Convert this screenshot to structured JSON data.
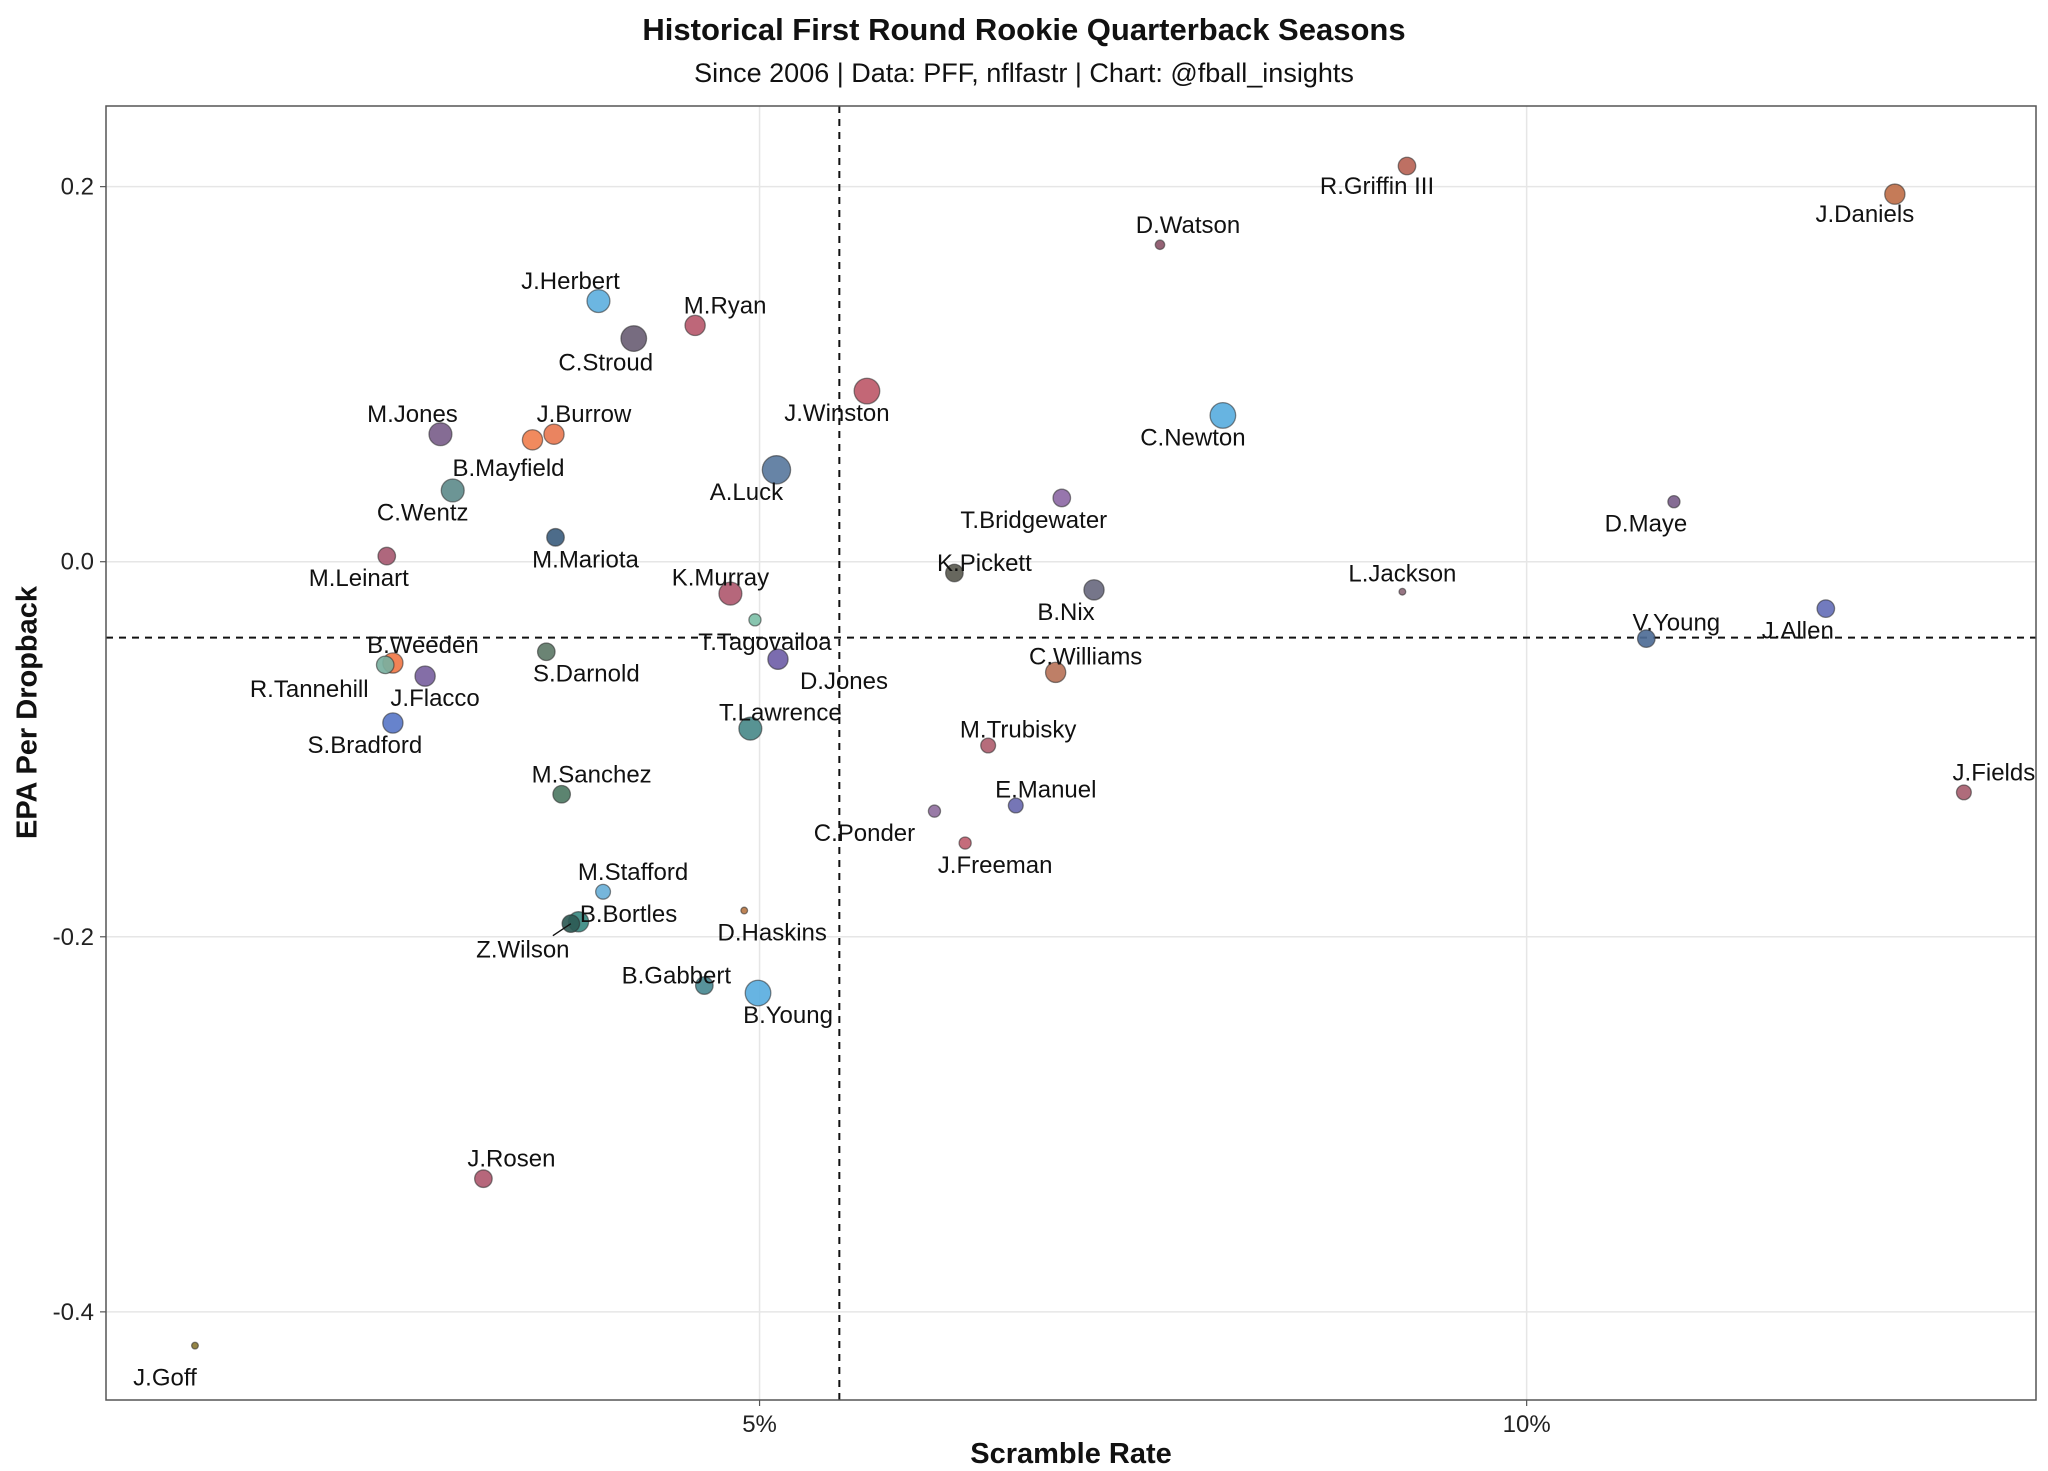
{
  "chart_data": {
    "type": "scatter",
    "title": "Historical First Round Rookie Quarterback Seasons",
    "subtitle": "Since 2006 | Data: PFF, nflfastr | Chart: @fball_insights",
    "xlabel": "Scramble Rate",
    "ylabel": "EPA Per Dropback",
    "xlim": [
      0.0074,
      0.1332
    ],
    "ylim": [
      -0.447,
      0.243
    ],
    "x_ticks": [
      {
        "value": 0.05,
        "label": "5%"
      },
      {
        "value": 0.1,
        "label": "10%"
      }
    ],
    "y_ticks": [
      {
        "value": 0.2,
        "label": "0.2"
      },
      {
        "value": 0.0,
        "label": "0.0"
      },
      {
        "value": -0.2,
        "label": "-0.2"
      },
      {
        "value": -0.4,
        "label": "-0.4"
      }
    ],
    "reference_lines": {
      "x": 0.0552,
      "y": -0.0405
    },
    "grid": true,
    "points": [
      {
        "name": "J.Goff",
        "x": 0.0132,
        "y": -0.418,
        "size": 1,
        "color": "#8b7a35"
      },
      {
        "name": "R.Griffin III",
        "x": 0.0922,
        "y": 0.211,
        "size": 5,
        "color": "#b86456"
      },
      {
        "name": "J.Daniels",
        "x": 0.124,
        "y": 0.196,
        "size": 6,
        "color": "#c0704a"
      },
      {
        "name": "D.Watson",
        "x": 0.0761,
        "y": 0.169,
        "size": 2,
        "color": "#8b5569"
      },
      {
        "name": "J.Herbert",
        "x": 0.0395,
        "y": 0.139,
        "size": 7,
        "color": "#5fb0de"
      },
      {
        "name": "C.Stroud",
        "x": 0.0418,
        "y": 0.119,
        "size": 8,
        "color": "#6b6075"
      },
      {
        "name": "M.Ryan",
        "x": 0.0458,
        "y": 0.126,
        "size": 6,
        "color": "#b85a6e"
      },
      {
        "name": "J.Winston",
        "x": 0.057,
        "y": 0.091,
        "size": 8,
        "color": "#be5a6a"
      },
      {
        "name": "C.Newton",
        "x": 0.0802,
        "y": 0.078,
        "size": 8,
        "color": "#5aaede"
      },
      {
        "name": "M.Jones",
        "x": 0.0292,
        "y": 0.068,
        "size": 7,
        "color": "#7b5f8b"
      },
      {
        "name": "J.Burrow",
        "x": 0.0366,
        "y": 0.068,
        "size": 6,
        "color": "#e87a52"
      },
      {
        "name": "B.Mayfield",
        "x": 0.0352,
        "y": 0.065,
        "size": 6,
        "color": "#f08050"
      },
      {
        "name": "A.Luck",
        "x": 0.0511,
        "y": 0.049,
        "size": 9,
        "color": "#5a7a9e"
      },
      {
        "name": "C.Wentz",
        "x": 0.03,
        "y": 0.038,
        "size": 7,
        "color": "#5f8c8c"
      },
      {
        "name": "T.Bridgewater",
        "x": 0.0697,
        "y": 0.034,
        "size": 5,
        "color": "#8e6aa6"
      },
      {
        "name": "D.Maye",
        "x": 0.1096,
        "y": 0.032,
        "size": 3,
        "color": "#7b5f8b"
      },
      {
        "name": "M.Mariota",
        "x": 0.0367,
        "y": 0.013,
        "size": 5,
        "color": "#3e6080"
      },
      {
        "name": "M.Leinart",
        "x": 0.0257,
        "y": 0.003,
        "size": 5,
        "color": "#a85a72"
      },
      {
        "name": "K.Pickett",
        "x": 0.0627,
        "y": -0.006,
        "size": 5,
        "color": "#5a5a50"
      },
      {
        "name": "K.Murray",
        "x": 0.0481,
        "y": -0.017,
        "size": 7,
        "color": "#b05a70"
      },
      {
        "name": "B.Nix",
        "x": 0.0718,
        "y": -0.015,
        "size": 6,
        "color": "#6a6a80"
      },
      {
        "name": "L.Jackson",
        "x": 0.0919,
        "y": -0.016,
        "size": 1,
        "color": "#8e6a7a"
      },
      {
        "name": "J.Allen",
        "x": 0.1195,
        "y": -0.025,
        "size": 5,
        "color": "#6670b8"
      },
      {
        "name": "T.Tagovailoa",
        "x": 0.0497,
        "y": -0.031,
        "size": 3,
        "color": "#7ec0a8"
      },
      {
        "name": "V.Young",
        "x": 0.1078,
        "y": -0.041,
        "size": 5,
        "color": "#4e6c96"
      },
      {
        "name": "D.Jones",
        "x": 0.0512,
        "y": -0.052,
        "size": 6,
        "color": "#7060a8"
      },
      {
        "name": "S.Darnold",
        "x": 0.0361,
        "y": -0.048,
        "size": 5,
        "color": "#5e7a68"
      },
      {
        "name": "B.Weeden",
        "x": 0.0261,
        "y": -0.054,
        "size": 6,
        "color": "#f07848"
      },
      {
        "name": "R.Tannehill",
        "x": 0.0256,
        "y": -0.055,
        "size": 5,
        "color": "#7ab0a0"
      },
      {
        "name": "J.Flacco",
        "x": 0.0282,
        "y": -0.061,
        "size": 6,
        "color": "#7a62a0"
      },
      {
        "name": "C.Williams",
        "x": 0.0693,
        "y": -0.059,
        "size": 6,
        "color": "#b8745a"
      },
      {
        "name": "S.Bradford",
        "x": 0.0261,
        "y": -0.086,
        "size": 6,
        "color": "#5a78c8"
      },
      {
        "name": "T.Lawrence",
        "x": 0.0494,
        "y": -0.089,
        "size": 7,
        "color": "#4a8a8a"
      },
      {
        "name": "M.Trubisky",
        "x": 0.0649,
        "y": -0.098,
        "size": 4,
        "color": "#b06070"
      },
      {
        "name": "M.Sanchez",
        "x": 0.0371,
        "y": -0.124,
        "size": 5,
        "color": "#4e7a64"
      },
      {
        "name": "E.Manuel",
        "x": 0.0667,
        "y": -0.13,
        "size": 4,
        "color": "#6a6ab0"
      },
      {
        "name": "J.Fields",
        "x": 0.1285,
        "y": -0.123,
        "size": 4,
        "color": "#a86070"
      },
      {
        "name": "C.Ponder",
        "x": 0.0614,
        "y": -0.133,
        "size": 3,
        "color": "#9070a0"
      },
      {
        "name": "J.Freeman",
        "x": 0.0634,
        "y": -0.15,
        "size": 3,
        "color": "#c06070"
      },
      {
        "name": "M.Stafford",
        "x": 0.0398,
        "y": -0.176,
        "size": 4,
        "color": "#6ab0d8"
      },
      {
        "name": "D.Haskins",
        "x": 0.049,
        "y": -0.186,
        "size": 1,
        "color": "#b87a48"
      },
      {
        "name": "B.Bortles",
        "x": 0.0382,
        "y": -0.192,
        "size": 6,
        "color": "#3a8a82"
      },
      {
        "name": "Z.Wilson",
        "x": 0.0377,
        "y": -0.193,
        "size": 5,
        "color": "#2e5a55"
      },
      {
        "name": "B.Gabbert",
        "x": 0.0464,
        "y": -0.226,
        "size": 5,
        "color": "#4a8a92"
      },
      {
        "name": "B.Young",
        "x": 0.0499,
        "y": -0.23,
        "size": 8,
        "color": "#5aaee0"
      },
      {
        "name": "J.Rosen",
        "x": 0.032,
        "y": -0.329,
        "size": 5,
        "color": "#b05a70"
      }
    ]
  }
}
